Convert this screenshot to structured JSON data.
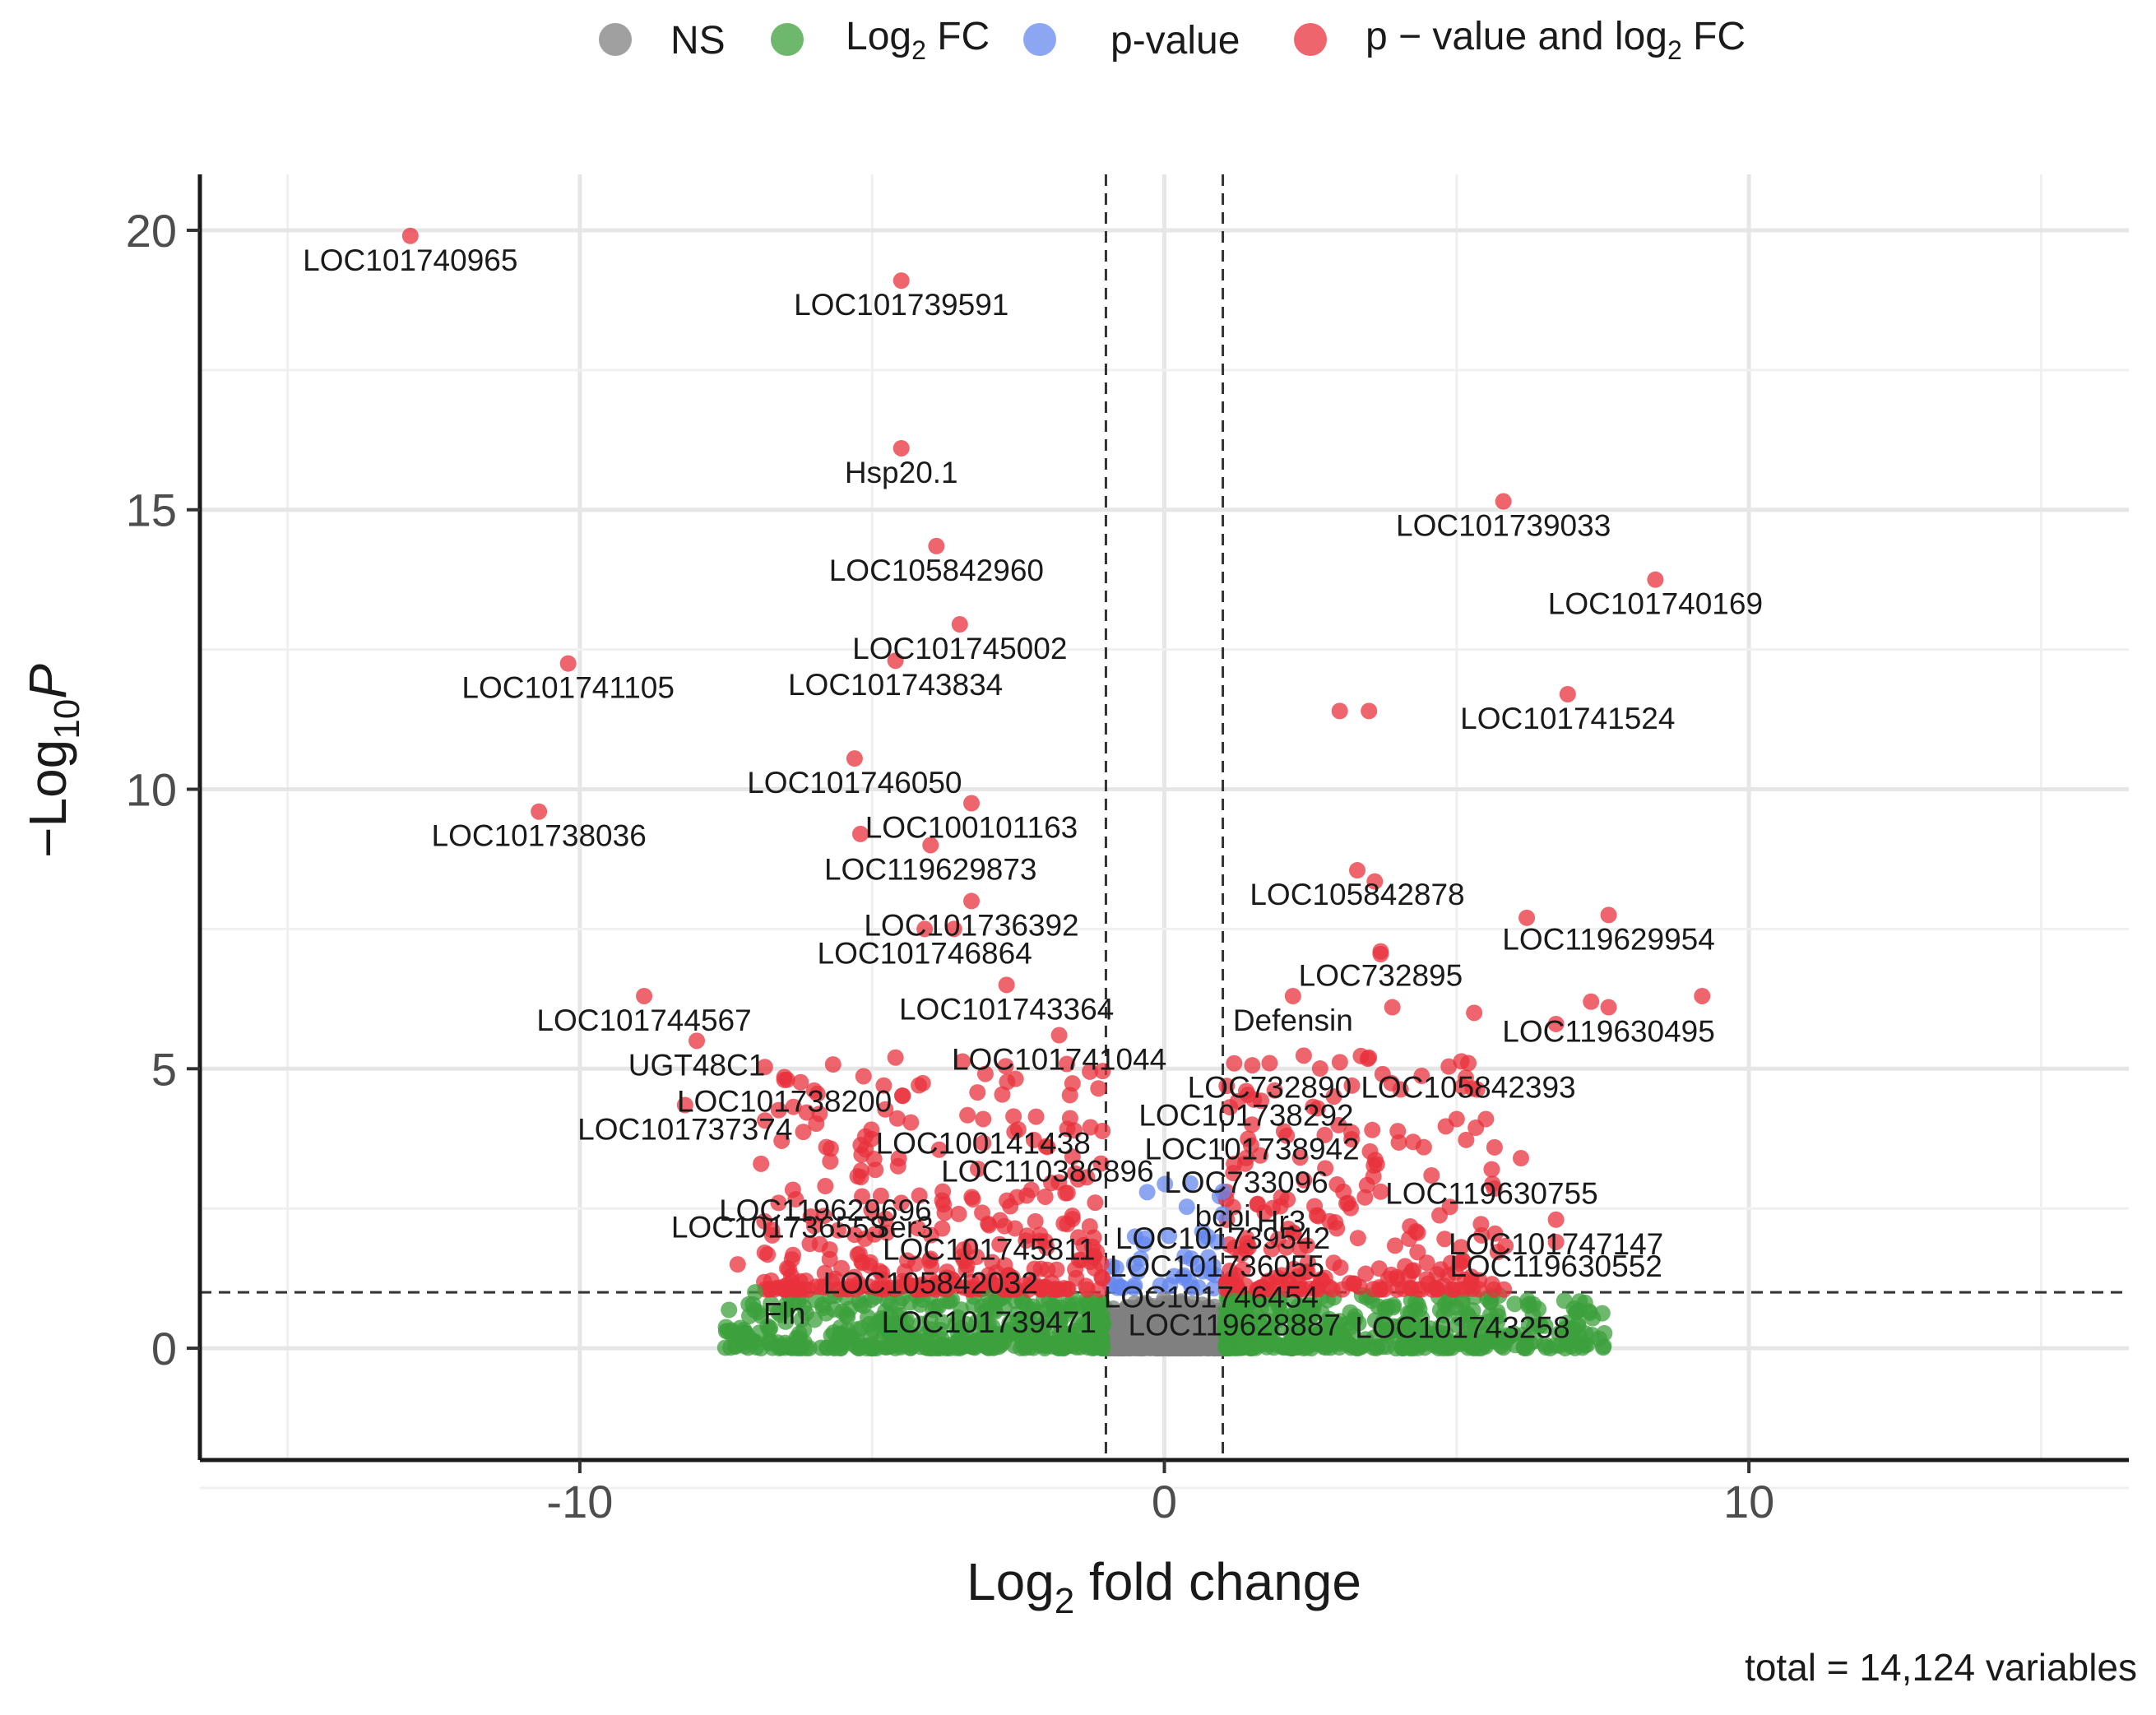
{
  "chart_data": {
    "type": "scatter",
    "subtype": "volcano",
    "xlabel_main": "Log",
    "xlabel_sub": "2",
    "xlabel_rest": " fold change",
    "ylabel_pre": "−Log",
    "ylabel_sub": "10",
    "ylabel_var": "P",
    "xlim": [
      -16.5,
      16.5
    ],
    "ylim": [
      -2,
      21
    ],
    "x_ticks": [
      -10,
      0,
      10
    ],
    "x_tick_labels": [
      "-10",
      "0",
      "10"
    ],
    "y_ticks": [
      0,
      5,
      10,
      15,
      20
    ],
    "y_tick_labels": [
      "0",
      "5",
      "10",
      "15",
      "20"
    ],
    "fc_cutoff": 1,
    "p_cutoff_log": 1,
    "grid": true,
    "legend_position": "top",
    "legend": [
      {
        "key": "NS",
        "pre": "NS",
        "sub": "",
        "post": "",
        "color": "#808080"
      },
      {
        "key": "log2fc",
        "pre": "Log",
        "sub": "2",
        "post": " FC",
        "color": "#3ca03c"
      },
      {
        "key": "pvalue",
        "pre": "p-value",
        "sub": "",
        "post": "",
        "color": "#6688ee"
      },
      {
        "key": "both",
        "pre": "p − value and log",
        "sub": "2",
        "post": " FC",
        "color": "#e8323c"
      }
    ],
    "caption": "total = 14,124 variables",
    "point_alpha": 0.75,
    "labeled_points": [
      {
        "label": "LOC101740965",
        "x": -12.9,
        "y": 19.9
      },
      {
        "label": "LOC101739591",
        "x": -4.5,
        "y": 19.1
      },
      {
        "label": "Hsp20.1",
        "x": -4.5,
        "y": 16.1
      },
      {
        "label": "LOC101739033",
        "x": 5.8,
        "y": 15.15
      },
      {
        "label": "LOC105842960",
        "x": -3.9,
        "y": 14.35
      },
      {
        "label": "LOC101740169",
        "x": 8.4,
        "y": 13.75
      },
      {
        "label": "LOC101745002",
        "x": -3.5,
        "y": 12.95
      },
      {
        "label": "LOC101743834",
        "x": -4.6,
        "y": 12.3
      },
      {
        "label": "LOC101741105",
        "x": -10.2,
        "y": 12.25
      },
      {
        "label": "LOC101741524",
        "x": 6.9,
        "y": 11.7
      },
      {
        "label": "LOC101746050",
        "x": -5.3,
        "y": 10.55
      },
      {
        "label": "LOC100101163",
        "x": -3.3,
        "y": 9.75
      },
      {
        "label": "LOC101738036",
        "x": -10.7,
        "y": 9.6
      },
      {
        "label": "LOC119629873",
        "x": -4.0,
        "y": 9.0
      },
      {
        "label": "LOC105842878",
        "x": 3.3,
        "y": 8.55
      },
      {
        "label": "LOC119629954",
        "x": 7.6,
        "y": 7.75
      },
      {
        "label": "LOC101736392",
        "x": -3.3,
        "y": 8.0
      },
      {
        "label": "LOC101746864",
        "x": -4.1,
        "y": 7.5
      },
      {
        "label": "LOC732895",
        "x": 3.7,
        "y": 7.1
      },
      {
        "label": "LOC101743364",
        "x": -2.7,
        "y": 6.5
      },
      {
        "label": "LOC119630495",
        "x": 7.6,
        "y": 6.1
      },
      {
        "label": "LOC101744567",
        "x": -8.9,
        "y": 6.3
      },
      {
        "label": "Defensin",
        "x": 2.2,
        "y": 6.3
      },
      {
        "label": "LOC105842393",
        "x": 5.2,
        "y": 5.1
      },
      {
        "label": "LOC101741044",
        "x": -1.8,
        "y": 5.6
      },
      {
        "label": "UGT48C1",
        "x": -8.0,
        "y": 5.5
      },
      {
        "label": "LOC732890",
        "x": 1.8,
        "y": 5.1
      },
      {
        "label": "LOC101738200",
        "x": -6.5,
        "y": 4.85
      },
      {
        "label": "LOC101738292",
        "x": 1.4,
        "y": 4.6
      },
      {
        "label": "LOC101737374",
        "x": -8.2,
        "y": 4.35
      },
      {
        "label": "LOC101738942",
        "x": 1.5,
        "y": 4.0
      },
      {
        "label": "LOC100141438",
        "x": -3.1,
        "y": 4.1
      },
      {
        "label": "LOC110386896",
        "x": -2.0,
        "y": 3.6
      },
      {
        "label": "LOC733096",
        "x": 1.4,
        "y": 3.4
      },
      {
        "label": "LOC119630755",
        "x": 5.6,
        "y": 3.2
      },
      {
        "label": "LOC119629696",
        "x": -5.8,
        "y": 2.9
      },
      {
        "label": "bcpi",
        "x": 1.0,
        "y": 2.8
      },
      {
        "label": "Hr3",
        "x": 2.0,
        "y": 2.7
      },
      {
        "label": "LOC101736553",
        "x": -6.6,
        "y": 2.6
      },
      {
        "label": "Ser3",
        "x": -4.5,
        "y": 2.6
      },
      {
        "label": "LOC101739542",
        "x": 1.0,
        "y": 2.4
      },
      {
        "label": "LOC101747147",
        "x": 6.7,
        "y": 2.3
      },
      {
        "label": "LOC101745811",
        "x": -3.0,
        "y": 2.2
      },
      {
        "label": "LOC101736055",
        "x": 0.9,
        "y": 1.9
      },
      {
        "label": "LOC119630552",
        "x": 6.7,
        "y": 1.9
      },
      {
        "label": "LOC105842032",
        "x": -4.0,
        "y": 1.6
      },
      {
        "label": "LOC101746454",
        "x": 0.8,
        "y": 1.35
      },
      {
        "label": "Fln",
        "x": -6.5,
        "y": 1.05
      },
      {
        "label": "LOC101739471",
        "x": -3.0,
        "y": 0.9
      },
      {
        "label": "LOC119628887",
        "x": 1.2,
        "y": 0.85
      },
      {
        "label": "LOC101743258",
        "x": 5.1,
        "y": 0.8
      }
    ],
    "extra_points": [
      {
        "x": 3.0,
        "y": 11.4
      },
      {
        "x": 3.5,
        "y": 11.4
      },
      {
        "x": -5.2,
        "y": 9.2
      },
      {
        "x": 3.6,
        "y": 8.35
      },
      {
        "x": 6.2,
        "y": 7.7
      },
      {
        "x": -3.6,
        "y": 7.5
      },
      {
        "x": 3.7,
        "y": 7.05
      },
      {
        "x": 3.9,
        "y": 6.1
      },
      {
        "x": 5.3,
        "y": 6.0
      },
      {
        "x": 6.7,
        "y": 5.8
      },
      {
        "x": 7.3,
        "y": 6.2
      },
      {
        "x": 9.2,
        "y": 6.3
      },
      {
        "x": 3.5,
        "y": 5.2
      },
      {
        "x": -4.6,
        "y": 5.2
      },
      {
        "x": -6.5,
        "y": 4.8
      },
      {
        "x": 5.0,
        "y": 4.1
      },
      {
        "x": 5.5,
        "y": 4.1
      },
      {
        "x": -4.8,
        "y": 4.7
      },
      {
        "x": 6.1,
        "y": 3.4
      },
      {
        "x": 3.7,
        "y": 2.8
      },
      {
        "x": -6.9,
        "y": 3.3
      },
      {
        "x": -7.3,
        "y": 1.5
      },
      {
        "x": -7.0,
        "y": 1.0
      }
    ]
  }
}
